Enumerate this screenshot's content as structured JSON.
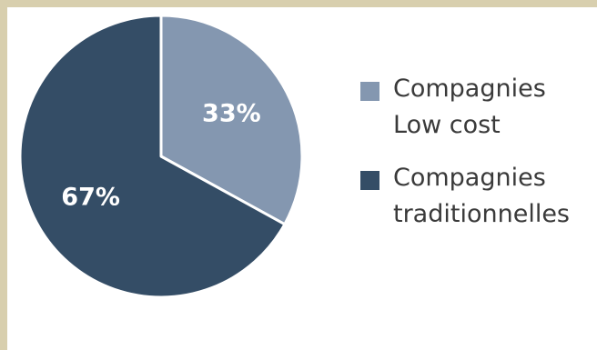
{
  "chart_data": {
    "type": "pie",
    "title": "",
    "slices": [
      {
        "label_lines": [
          "Compagnies",
          "Low cost"
        ],
        "value": 33,
        "display": "33%",
        "color": "#8497b0"
      },
      {
        "label_lines": [
          "Compagnies",
          "traditionnelles"
        ],
        "value": 67,
        "display": "67%",
        "color": "#344d66"
      }
    ],
    "legend_position": "right",
    "start_angle": "12 o'clock",
    "direction": "clockwise",
    "slice_separator_color": "#ffffff"
  }
}
